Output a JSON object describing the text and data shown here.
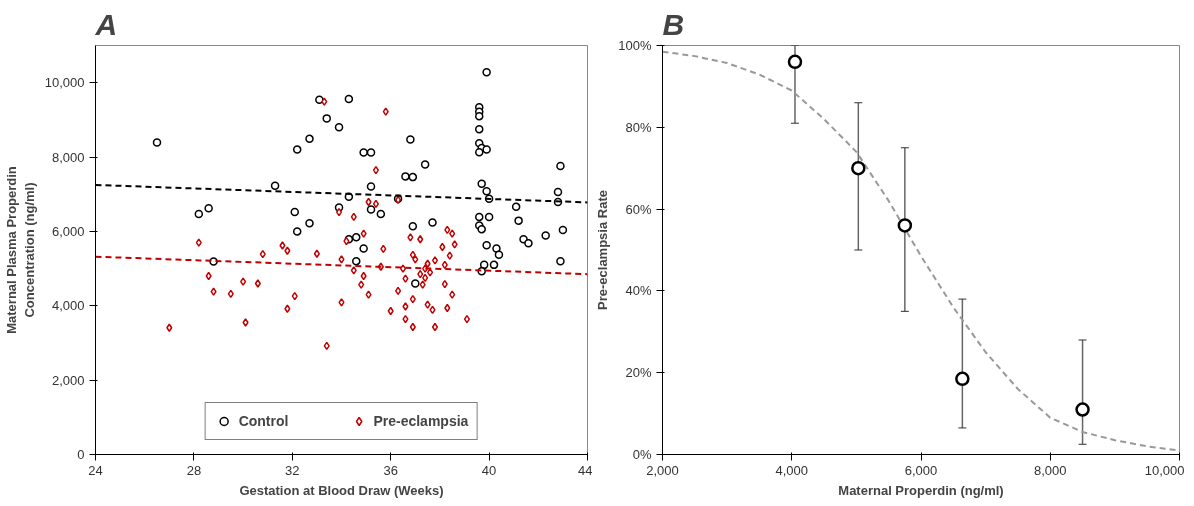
{
  "chart_data": [
    {
      "type": "scatter",
      "title": "A",
      "xlabel": "Gestation at Blood Draw (Weeks)",
      "ylabel": "Maternal Plasma Properdin\nConcentration (ng/ml)",
      "xlim": [
        24,
        44
      ],
      "xticks": [
        24,
        28,
        32,
        36,
        40,
        44
      ],
      "ylim": [
        0,
        11000
      ],
      "yticks": [
        0,
        {
          "value": 2000,
          "label": "2,000"
        },
        {
          "value": 4000,
          "label": "4,000"
        },
        {
          "value": 6000,
          "label": "6,000"
        },
        {
          "value": 8000,
          "label": "8,000"
        },
        {
          "value": 10000,
          "label": "10,000"
        }
      ],
      "grid": false,
      "legend": "bottom",
      "series": [
        {
          "name": "Control",
          "type": "scatter",
          "marker": "circle",
          "color": "#000000",
          "x": [
            39.6,
            39.6,
            39.6,
            39.6,
            39.6,
            39.7,
            39.9,
            39.6,
            39.7,
            39.9,
            40.0,
            39.6,
            40.0,
            39.6,
            39.7,
            39.9,
            40.3,
            40.4,
            39.8,
            40.2,
            39.7,
            26.5,
            32.2,
            28.2,
            28.6,
            31.3,
            32.1,
            32.2,
            28.8,
            39.9,
            33.1,
            34.3,
            33.4,
            33.9,
            32.7,
            34.9,
            35.2,
            36.8,
            37.4,
            36.6,
            36.9,
            35.2,
            34.3,
            36.3,
            33.9,
            35.2,
            35.6,
            32.7,
            36.9,
            37.7,
            34.6,
            34.3,
            34.9,
            34.6,
            37.0,
            42.9,
            42.8,
            42.8,
            41.1,
            41.2,
            41.4,
            41.6,
            42.3,
            43.0,
            42.9
          ],
          "values": [
            9340,
            9220,
            9100,
            8750,
            8370,
            8240,
            8200,
            8130,
            7280,
            7080,
            6880,
            6390,
            6390,
            6160,
            6060,
            5630,
            5540,
            5370,
            5100,
            5100,
            4930,
            8390,
            8200,
            6470,
            6620,
            7230,
            6520,
            6000,
            5190,
            10280,
            9540,
            9560,
            9040,
            8800,
            8490,
            8120,
            8120,
            8470,
            7800,
            7480,
            7460,
            7210,
            6930,
            6880,
            6640,
            6590,
            6470,
            6220,
            6140,
            6240,
            5840,
            5790,
            5540,
            5200,
            4600,
            7760,
            7060,
            6790,
            6660,
            6290,
            5790,
            5680,
            5890,
            6040,
            5200
          ]
        },
        {
          "name": "Pre-eclampsia",
          "type": "scatter",
          "marker": "diamond",
          "color": "#c00000",
          "x": [
            28.2,
            30.8,
            31.6,
            31.8,
            28.6,
            28.8,
            30.0,
            30.6,
            29.5,
            32.1,
            31.8,
            30.1,
            27.0,
            33.3,
            35.8,
            35.4,
            35.1,
            35.4,
            36.3,
            33.9,
            34.5,
            34.9,
            34.2,
            35.7,
            36.8,
            37.2,
            38.3,
            38.5,
            38.6,
            38.1,
            38.4,
            33.0,
            34.0,
            36.9,
            37.0,
            37.8,
            37.5,
            37.4,
            38.2,
            34.5,
            35.6,
            36.5,
            37.2,
            37.6,
            34.9,
            36.6,
            37.4,
            34.8,
            38.2,
            37.3,
            36.3,
            35.1,
            38.5,
            36.9,
            34.0,
            36.6,
            37.5,
            37.7,
            38.3,
            36.0,
            36.6,
            39.1,
            36.9,
            37.8,
            33.4
          ],
          "values": [
            5700,
            5390,
            5620,
            5480,
            4800,
            4380,
            4650,
            4600,
            4320,
            4260,
            3920,
            3550,
            3410,
            9490,
            9220,
            7650,
            6790,
            6740,
            6850,
            6520,
            6390,
            5940,
            5740,
            5530,
            5840,
            5790,
            6040,
            5940,
            5650,
            5580,
            5350,
            5400,
            5250,
            5370,
            5250,
            5220,
            5130,
            5000,
            5100,
            4950,
            5050,
            5000,
            4850,
            4900,
            4800,
            4730,
            4750,
            4570,
            4580,
            4570,
            4400,
            4300,
            4300,
            4180,
            4090,
            3980,
            4030,
            3890,
            3940,
            3860,
            3640,
            3640,
            3430,
            3430,
            2920
          ]
        },
        {
          "type": "line",
          "line_style": "dashed",
          "color": "#000000",
          "x": [
            24,
            44
          ],
          "values": [
            7250,
            6780
          ]
        },
        {
          "type": "line",
          "line_style": "dashed",
          "color": "#c00000",
          "x": [
            24,
            44
          ],
          "values": [
            5320,
            4850
          ]
        }
      ]
    },
    {
      "type": "scatter",
      "title": "B",
      "xlabel": "Maternal Properdin (ng/ml)",
      "ylabel": "Pre-eclampsia Rate",
      "xlim": [
        2000,
        10000
      ],
      "xticks": [
        {
          "value": 2000,
          "label": "2,000"
        },
        {
          "value": 4000,
          "label": "4,000"
        },
        {
          "value": 6000,
          "label": "6,000"
        },
        {
          "value": 8000,
          "label": "8,000"
        },
        {
          "value": 10000,
          "label": "10,000"
        }
      ],
      "ylim": [
        0,
        100
      ],
      "yticks": [
        {
          "value": 0,
          "label": "0%"
        },
        {
          "value": 20,
          "label": "20%"
        },
        {
          "value": 40,
          "label": "40%"
        },
        {
          "value": 60,
          "label": "60%"
        },
        {
          "value": 80,
          "label": "80%"
        },
        {
          "value": 100,
          "label": "100%"
        }
      ],
      "grid": false,
      "series": [
        {
          "type": "line",
          "line_style": "dashed",
          "color": "#999999",
          "x": [
            2000,
            2500,
            3000,
            3500,
            4000,
            4500,
            5000,
            5500,
            6000,
            6500,
            7000,
            7500,
            8000,
            8500,
            9000,
            9500,
            10000
          ],
          "values": [
            98.5,
            97.4,
            95.7,
            92.9,
            89,
            82,
            74,
            62,
            48.5,
            36,
            25,
            16,
            9,
            5.5,
            3.5,
            2,
            1
          ]
        },
        {
          "type": "scatter",
          "marker": "circle",
          "color": "#000000",
          "x": [
            4050,
            5030,
            5750,
            6640,
            8500
          ],
          "values": [
            96,
            70,
            56,
            18.5,
            11
          ],
          "errors": [
            [
              81,
              100
            ],
            [
              50,
              86
            ],
            [
              35,
              75
            ],
            [
              6.5,
              38
            ],
            [
              2.5,
              28
            ]
          ]
        }
      ]
    }
  ]
}
